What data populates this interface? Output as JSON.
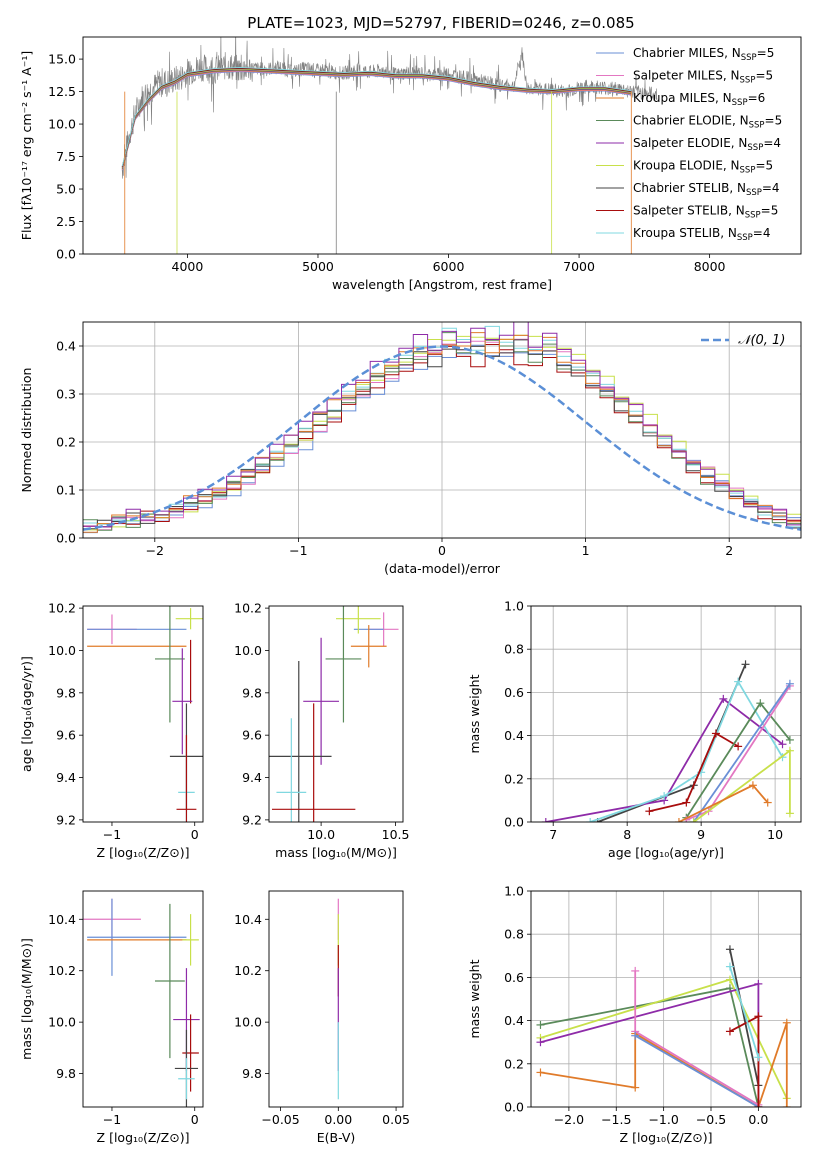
{
  "figure": {
    "title": "PLATE=1023, MJD=52797, FIBERID=0246, z=0.085"
  },
  "chart_data": [
    {
      "id": "spectrum",
      "type": "line",
      "xlabel": "wavelength [Angstrom, rest frame]",
      "ylabel": "Flux [fλ10⁻¹⁷ erg cm⁻² s⁻¹ A⁻¹]",
      "xlim": [
        3200,
        8700
      ],
      "ylim": [
        0,
        16.7
      ],
      "xticks": [
        4000,
        5000,
        6000,
        7000,
        8000
      ],
      "yticks": [
        0.0,
        2.5,
        5.0,
        7.5,
        10.0,
        12.5,
        15.0
      ],
      "legend_position": "top-right",
      "observed": {
        "color": "#808080",
        "x": [
          3500,
          3550,
          3600,
          3650,
          3700,
          3750,
          3800,
          3850,
          3900,
          3950,
          4000,
          4100,
          4200,
          4300,
          4400,
          4500,
          4600,
          4700,
          4800,
          4900,
          5000,
          5100,
          5200,
          5300,
          5400,
          5500,
          5600,
          5700,
          5800,
          5900,
          6000,
          6100,
          6200,
          6300,
          6400,
          6500,
          6562,
          6600,
          6700,
          6800,
          6900,
          7000,
          7100,
          7200,
          7300,
          7400,
          7500,
          7600
        ],
        "y": [
          6.5,
          9.0,
          10.8,
          12.0,
          12.5,
          12.9,
          13.3,
          13.2,
          13.4,
          13.6,
          14.0,
          14.4,
          14.1,
          14.5,
          14.2,
          14.3,
          14.2,
          14.4,
          14.0,
          14.3,
          14.1,
          14.0,
          13.9,
          14.2,
          14.0,
          14.1,
          13.8,
          14.0,
          13.9,
          13.8,
          13.9,
          13.6,
          13.4,
          13.2,
          13.0,
          12.9,
          15.5,
          12.8,
          12.7,
          12.6,
          12.5,
          12.8,
          12.9,
          12.8,
          12.7,
          12.5,
          12.4,
          12.3
        ]
      },
      "series": [
        {
          "name": "Chabrier MILES, N_SSP=5",
          "color": "#6a8fd6"
        },
        {
          "name": "Salpeter MILES, N_SSP=5",
          "color": "#e377c2"
        },
        {
          "name": "Kroupa MILES, N_SSP=6",
          "color": "#e07b2a"
        },
        {
          "name": "Chabrier ELODIE, N_SSP=5",
          "color": "#5a8a5a"
        },
        {
          "name": "Salpeter ELODIE, N_SSP=4",
          "color": "#8e2ba8"
        },
        {
          "name": "Kroupa ELODIE, N_SSP=5",
          "color": "#c8e04a"
        },
        {
          "name": "Chabrier STELIB, N_SSP=4",
          "color": "#444444"
        },
        {
          "name": "Salpeter STELIB, N_SSP=5",
          "color": "#a80d0d"
        },
        {
          "name": "Kroupa STELIB, N_SSP=4",
          "color": "#80d8e0"
        }
      ],
      "model_curve": {
        "x": [
          3500,
          3600,
          3700,
          3800,
          3900,
          4000,
          4200,
          4400,
          4600,
          4800,
          5000,
          5200,
          5400,
          5600,
          5800,
          6000,
          6200,
          6400,
          6600,
          6800,
          7000,
          7200,
          7400
        ],
        "y": [
          6.6,
          10.5,
          11.8,
          12.8,
          13.2,
          13.8,
          14.1,
          14.2,
          14.1,
          14.0,
          13.9,
          13.8,
          13.9,
          13.7,
          13.7,
          13.5,
          13.1,
          12.8,
          12.6,
          12.5,
          12.7,
          12.7,
          12.4
        ]
      }
    },
    {
      "id": "residuals",
      "type": "histogram",
      "xlabel": "(data-model)/error",
      "ylabel": "Normed distribution",
      "xlim": [
        -2.5,
        2.5
      ],
      "ylim": [
        0,
        0.45
      ],
      "xticks": [
        -2,
        -1,
        0,
        1,
        2
      ],
      "yticks": [
        0.0,
        0.1,
        0.2,
        0.3,
        0.4
      ],
      "grid": true,
      "legend_position": "top-right",
      "legend": [
        "𝒩(0, 1)"
      ],
      "bin_width": 0.1,
      "bin_start": -2.5,
      "histograms": [
        [
          0.02,
          0.025,
          0.03,
          0.035,
          0.04,
          0.045,
          0.05,
          0.06,
          0.07,
          0.085,
          0.1,
          0.12,
          0.14,
          0.16,
          0.18,
          0.2,
          0.23,
          0.25,
          0.28,
          0.3,
          0.32,
          0.34,
          0.36,
          0.37,
          0.39,
          0.4,
          0.4,
          0.41,
          0.4,
          0.39,
          0.41,
          0.4,
          0.39,
          0.38,
          0.36,
          0.34,
          0.32,
          0.29,
          0.27,
          0.24,
          0.21,
          0.19,
          0.16,
          0.14,
          0.12,
          0.1,
          0.08,
          0.06,
          0.05,
          0.04
        ],
        [
          0.03,
          0.02,
          0.04,
          0.03,
          0.05,
          0.04,
          0.06,
          0.07,
          0.08,
          0.09,
          0.11,
          0.13,
          0.15,
          0.17,
          0.19,
          0.22,
          0.24,
          0.26,
          0.29,
          0.31,
          0.33,
          0.35,
          0.37,
          0.38,
          0.39,
          0.42,
          0.39,
          0.38,
          0.42,
          0.4,
          0.38,
          0.37,
          0.4,
          0.36,
          0.35,
          0.33,
          0.3,
          0.28,
          0.25,
          0.22,
          0.2,
          0.17,
          0.15,
          0.12,
          0.11,
          0.09,
          0.07,
          0.05,
          0.04,
          0.03
        ],
        [
          0.02,
          0.03,
          0.04,
          0.05,
          0.04,
          0.05,
          0.06,
          0.08,
          0.09,
          0.1,
          0.12,
          0.14,
          0.16,
          0.18,
          0.21,
          0.23,
          0.26,
          0.28,
          0.3,
          0.32,
          0.35,
          0.36,
          0.38,
          0.4,
          0.38,
          0.41,
          0.4,
          0.42,
          0.39,
          0.41,
          0.43,
          0.39,
          0.41,
          0.37,
          0.36,
          0.33,
          0.31,
          0.28,
          0.26,
          0.23,
          0.2,
          0.18,
          0.15,
          0.13,
          0.11,
          0.09,
          0.07,
          0.06,
          0.05,
          0.03
        ]
      ],
      "normal_curve": {
        "mu": 0,
        "sigma": 1,
        "color": "#5b8fd6"
      }
    },
    {
      "id": "age_vs_Z",
      "type": "scatter",
      "xlabel": "Z [log₁₀(Z/Z⊙)]",
      "ylabel": "age  [log₁₀(age/yr)]",
      "xlim": [
        -1.35,
        0.1
      ],
      "ylim": [
        9.19,
        10.21
      ],
      "xticks": [
        -1,
        0
      ],
      "yticks": [
        9.2,
        9.4,
        9.6,
        9.8,
        10.0,
        10.2
      ],
      "points": [
        {
          "x": -1.0,
          "y": 10.1,
          "xerr": 0.3,
          "yerr": 0.07,
          "color": "#e377c2"
        },
        {
          "x": -0.7,
          "y": 10.1,
          "xerr": 0.6,
          "yerr": 0.0,
          "color": "#6a8fd6"
        },
        {
          "x": -0.7,
          "y": 10.02,
          "xerr": 0.6,
          "yerr": 0.0,
          "color": "#e07b2a"
        },
        {
          "x": -0.05,
          "y": 10.15,
          "xerr": 0.18,
          "yerr": 0.05,
          "color": "#c8e04a"
        },
        {
          "x": -0.3,
          "y": 9.96,
          "xerr": 0.18,
          "yerr": 0.3,
          "color": "#5a8a5a"
        },
        {
          "x": -0.05,
          "y": 9.9,
          "xerr": 0.0,
          "yerr": 0.15,
          "color": "#a80d0d"
        },
        {
          "x": -0.15,
          "y": 9.76,
          "xerr": 0.12,
          "yerr": 0.25,
          "color": "#8e2ba8"
        },
        {
          "x": -0.1,
          "y": 9.5,
          "xerr": 0.2,
          "yerr": 0.25,
          "color": "#444444"
        },
        {
          "x": -0.1,
          "y": 9.33,
          "xerr": 0.1,
          "yerr": 0.2,
          "color": "#80d8e0"
        },
        {
          "x": -0.1,
          "y": 9.25,
          "xerr": 0.12,
          "yerr": 0.35,
          "color": "#a80d0d"
        }
      ]
    },
    {
      "id": "age_vs_mass",
      "type": "scatter",
      "xlabel": "mass [log₁₀(M/M⊙)]",
      "ylabel": "",
      "xlim": [
        9.65,
        10.55
      ],
      "ylim": [
        9.19,
        10.21
      ],
      "xticks": [
        10.0,
        10.5
      ],
      "yticks": [
        9.2,
        9.4,
        9.6,
        9.8,
        10.0,
        10.2
      ],
      "points": [
        {
          "x": 10.42,
          "y": 10.1,
          "xerr": 0.1,
          "yerr": 0.08,
          "color": "#e377c2"
        },
        {
          "x": 10.32,
          "y": 10.1,
          "xerr": 0.1,
          "yerr": 0.0,
          "color": "#6a8fd6"
        },
        {
          "x": 10.32,
          "y": 10.02,
          "xerr": 0.12,
          "yerr": 0.1,
          "color": "#e07b2a"
        },
        {
          "x": 10.25,
          "y": 10.15,
          "xerr": 0.15,
          "yerr": 0.07,
          "color": "#c8e04a"
        },
        {
          "x": 10.15,
          "y": 9.96,
          "xerr": 0.12,
          "yerr": 0.3,
          "color": "#5a8a5a"
        },
        {
          "x": 10.0,
          "y": 9.76,
          "xerr": 0.12,
          "yerr": 0.3,
          "color": "#8e2ba8"
        },
        {
          "x": 9.85,
          "y": 9.5,
          "xerr": 0.22,
          "yerr": 0.45,
          "color": "#444444"
        },
        {
          "x": 9.8,
          "y": 9.33,
          "xerr": 0.1,
          "yerr": 0.35,
          "color": "#80d8e0"
        },
        {
          "x": 9.95,
          "y": 9.25,
          "xerr": 0.28,
          "yerr": 0.5,
          "color": "#a80d0d"
        }
      ]
    },
    {
      "id": "weight_vs_age",
      "type": "line",
      "xlabel": "age  [log₁₀(age/yr)]",
      "ylabel": "mass weight",
      "xlim": [
        6.7,
        10.35
      ],
      "ylim": [
        0,
        1.0
      ],
      "xticks": [
        7,
        8,
        9,
        10
      ],
      "yticks": [
        0.0,
        0.2,
        0.4,
        0.6,
        0.8,
        1.0
      ],
      "grid": true,
      "series": [
        {
          "color": "#444444",
          "x": [
            7.6,
            8.9,
            9.6
          ],
          "y": [
            0.0,
            0.17,
            0.73
          ]
        },
        {
          "color": "#8e2ba8",
          "x": [
            6.9,
            8.5,
            9.3,
            10.1
          ],
          "y": [
            0.0,
            0.1,
            0.57,
            0.36
          ]
        },
        {
          "color": "#80d8e0",
          "x": [
            7.5,
            8.5,
            9.0,
            9.5,
            10.1
          ],
          "y": [
            0.0,
            0.12,
            0.23,
            0.65,
            0.3
          ]
        },
        {
          "color": "#a80d0d",
          "x": [
            8.3,
            8.8,
            9.2,
            9.5
          ],
          "y": [
            0.05,
            0.09,
            0.41,
            0.35
          ]
        },
        {
          "color": "#5a8a5a",
          "x": [
            8.8,
            9.8,
            10.2
          ],
          "y": [
            0.02,
            0.55,
            0.38
          ]
        },
        {
          "color": "#e377c2",
          "x": [
            8.8,
            9.1,
            10.2
          ],
          "y": [
            0.01,
            0.05,
            0.63
          ]
        },
        {
          "color": "#6a8fd6",
          "x": [
            8.9,
            10.2
          ],
          "y": [
            0.0,
            0.64
          ]
        },
        {
          "color": "#c8e04a",
          "x": [
            8.9,
            10.2,
            10.2
          ],
          "y": [
            0.0,
            0.33,
            0.04
          ]
        },
        {
          "color": "#e07b2a",
          "x": [
            8.7,
            9.7,
            9.9
          ],
          "y": [
            0.0,
            0.17,
            0.09
          ]
        }
      ]
    },
    {
      "id": "mass_vs_Z",
      "type": "scatter",
      "xlabel": "Z [log₁₀(Z/Z⊙)]",
      "ylabel": "mass [log₁₀(M/M⊙)]",
      "xlim": [
        -1.35,
        0.1
      ],
      "ylim": [
        9.67,
        10.51
      ],
      "xticks": [
        -1,
        0
      ],
      "yticks": [
        9.8,
        10.0,
        10.2,
        10.4
      ],
      "points": [
        {
          "x": -1.0,
          "y": 10.4,
          "xerr": 0.35,
          "yerr": 0.08,
          "color": "#e377c2"
        },
        {
          "x": -0.7,
          "y": 10.33,
          "xerr": 0.6,
          "yerr": 0.0,
          "color": "#6a8fd6"
        },
        {
          "x": -1.0,
          "y": 10.33,
          "xerr": 0.0,
          "yerr": 0.15,
          "color": "#6a8fd6"
        },
        {
          "x": -0.7,
          "y": 10.32,
          "xerr": 0.6,
          "yerr": 0.0,
          "color": "#e07b2a"
        },
        {
          "x": -0.05,
          "y": 10.32,
          "xerr": 0.1,
          "yerr": 0.1,
          "color": "#c8e04a"
        },
        {
          "x": -0.3,
          "y": 10.16,
          "xerr": 0.18,
          "yerr": 0.3,
          "color": "#5a8a5a"
        },
        {
          "x": -0.1,
          "y": 10.01,
          "xerr": 0.16,
          "yerr": 0.2,
          "color": "#8e2ba8"
        },
        {
          "x": -0.05,
          "y": 9.88,
          "xerr": 0.1,
          "yerr": 0.15,
          "color": "#a80d0d"
        },
        {
          "x": -0.1,
          "y": 9.82,
          "xerr": 0.14,
          "yerr": 0.15,
          "color": "#444444"
        },
        {
          "x": -0.1,
          "y": 9.78,
          "xerr": 0.1,
          "yerr": 0.08,
          "color": "#80d8e0"
        }
      ]
    },
    {
      "id": "mass_vs_EBV",
      "type": "scatter",
      "xlabel": "E(B-V)",
      "ylabel": "",
      "xlim": [
        -0.06,
        0.056
      ],
      "ylim": [
        9.67,
        10.51
      ],
      "xticks": [
        -0.05,
        0.0,
        0.05
      ],
      "yticks": [
        9.8,
        10.0,
        10.2,
        10.4
      ],
      "points": [
        {
          "x": 0.0,
          "y": 10.4,
          "xerr": 0.0,
          "yerr": 0.08,
          "color": "#e377c2"
        },
        {
          "x": 0.0,
          "y": 10.32,
          "xerr": 0.0,
          "yerr": 0.1,
          "color": "#c8e04a"
        },
        {
          "x": 0.0,
          "y": 10.2,
          "xerr": 0.0,
          "yerr": 0.1,
          "color": "#a80d0d"
        },
        {
          "x": 0.0,
          "y": 10.01,
          "xerr": 0.0,
          "yerr": 0.2,
          "color": "#8e2ba8"
        },
        {
          "x": 0.0,
          "y": 9.85,
          "xerr": 0.0,
          "yerr": 0.15,
          "color": "#80d8e0"
        }
      ]
    },
    {
      "id": "weight_vs_Z",
      "type": "line",
      "xlabel": "Z [log₁₀(Z/Z⊙)]",
      "ylabel": "mass weight",
      "xlim": [
        -2.4,
        0.45
      ],
      "ylim": [
        0,
        1.0
      ],
      "xticks": [
        -2.0,
        -1.5,
        -1.0,
        -0.5,
        0.0
      ],
      "yticks": [
        0.0,
        0.2,
        0.4,
        0.6,
        0.8,
        1.0
      ],
      "grid": true,
      "series": [
        {
          "color": "#5a8a5a",
          "x": [
            -2.3,
            -0.3,
            0.0
          ],
          "y": [
            0.38,
            0.55,
            0.0
          ]
        },
        {
          "color": "#c8e04a",
          "x": [
            -2.3,
            -0.3,
            0.3
          ],
          "y": [
            0.32,
            0.59,
            0.04
          ]
        },
        {
          "color": "#8e2ba8",
          "x": [
            -2.3,
            0.0,
            0.0
          ],
          "y": [
            0.3,
            0.57,
            0.0
          ]
        },
        {
          "color": "#e07b2a",
          "x": [
            -2.3,
            -1.3,
            -1.3,
            0.0,
            0.3,
            0.3
          ],
          "y": [
            0.16,
            0.09,
            0.34,
            0.0,
            0.39,
            0.0
          ]
        },
        {
          "color": "#e377c2",
          "x": [
            -1.3,
            -1.3,
            0.0
          ],
          "y": [
            0.63,
            0.35,
            0.01
          ]
        },
        {
          "color": "#6a8fd6",
          "x": [
            -1.3,
            0.0
          ],
          "y": [
            0.33,
            0.0
          ]
        },
        {
          "color": "#444444",
          "x": [
            -0.3,
            0.0
          ],
          "y": [
            0.73,
            0.1
          ]
        },
        {
          "color": "#a80d0d",
          "x": [
            -0.3,
            0.0,
            0.0
          ],
          "y": [
            0.35,
            0.42,
            0.0
          ]
        },
        {
          "color": "#80d8e0",
          "x": [
            -0.3,
            0.0
          ],
          "y": [
            0.65,
            0.23
          ]
        }
      ]
    }
  ]
}
